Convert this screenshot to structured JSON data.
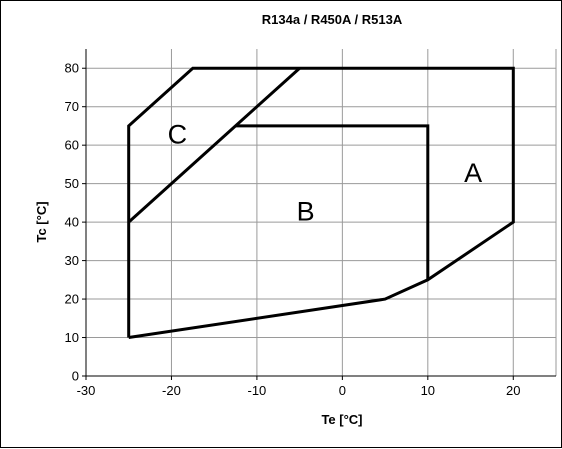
{
  "chart_data": {
    "type": "line",
    "title": "R134a / R450A / R513A",
    "xlabel": "Te [°C]",
    "ylabel": "Tc [°C]",
    "xlim": [
      -30,
      25
    ],
    "ylim": [
      0,
      85
    ],
    "xticks": [
      -30,
      -20,
      -10,
      0,
      10,
      20
    ],
    "yticks": [
      0,
      10,
      20,
      30,
      40,
      50,
      60,
      70,
      80
    ],
    "grid": true,
    "series": [
      {
        "points": [
          [
            -25,
            10
          ],
          [
            -25,
            65
          ],
          [
            -17.5,
            80
          ],
          [
            20,
            80
          ],
          [
            20,
            40
          ],
          [
            10,
            25
          ],
          [
            5,
            20
          ],
          [
            -25,
            10
          ]
        ]
      },
      {
        "points": [
          [
            -25,
            40
          ],
          [
            -5,
            80
          ]
        ]
      },
      {
        "points": [
          [
            -12.5,
            65
          ],
          [
            10,
            65
          ],
          [
            10,
            25
          ]
        ]
      }
    ],
    "annotations": [
      {
        "text": "A",
        "x": 15.3,
        "y": 53
      },
      {
        "text": "B",
        "x": -4.3,
        "y": 43
      },
      {
        "text": "C",
        "x": -19.3,
        "y": 63
      }
    ]
  }
}
